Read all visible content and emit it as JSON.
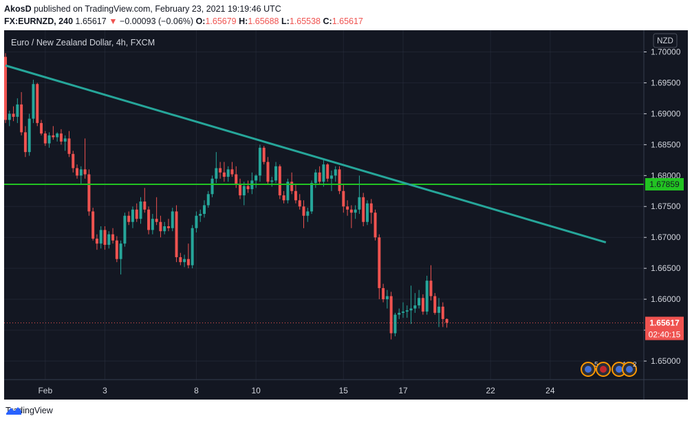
{
  "header": {
    "author": "AkosD",
    "published": "published on TradingView.com, February 23, 2021 19:19:46 UTC",
    "symbol": "FX:EURNZD, 240",
    "last": "1.65617",
    "arrow": "▼",
    "change": "−0.00093 (−0.06%)",
    "o_label": "O:",
    "o_value": "1.65679",
    "h_label": "H:",
    "h_value": "1.65688",
    "l_label": "L:",
    "l_value": "1.65538",
    "c_label": "C:",
    "c_value": "1.65617"
  },
  "legend": {
    "title": "Euro / New Zealand Dollar, 4h, FXCM"
  },
  "currency_badge": "NZD",
  "price_label": "1.65617",
  "countdown": "02:40:15",
  "level_label": "1.67859",
  "events": [
    "5",
    "10",
    "2"
  ],
  "footer": {
    "brand": "TradingView"
  },
  "colors": {
    "background": "#131722",
    "up": "#26a69a",
    "down": "#ef5350",
    "horizontal_line": "#22c322",
    "trendline": "#26a69a",
    "grid": "#363c4e",
    "axis_text": "#d1d4dc"
  },
  "chart_data": {
    "type": "candlestick",
    "title": "Euro / New Zealand Dollar, 4h, FXCM",
    "ylim": [
      1.647,
      1.7035
    ],
    "y_ticks": [
      1.65,
      1.655,
      1.66,
      1.665,
      1.67,
      1.675,
      1.68,
      1.685,
      1.69,
      1.695,
      1.7
    ],
    "y_tick_labels": [
      "1.65000",
      "1.65500",
      "1.66000",
      "1.66500",
      "1.67000",
      "1.67500",
      "1.68000",
      "1.68500",
      "1.69000",
      "1.69500",
      "1.70000"
    ],
    "x_tick_labels": [
      {
        "label": "Feb",
        "bar": 10
      },
      {
        "label": "3",
        "bar": 25
      },
      {
        "label": "8",
        "bar": 48
      },
      {
        "label": "10",
        "bar": 63
      },
      {
        "label": "15",
        "bar": 85
      },
      {
        "label": "17",
        "bar": 100
      },
      {
        "label": "22",
        "bar": 122
      },
      {
        "label": "24",
        "bar": 137
      }
    ],
    "candles": [
      [
        1.6992,
        1.6998,
        1.6885,
        1.689
      ],
      [
        1.689,
        1.6905,
        1.688,
        1.69
      ],
      [
        1.69,
        1.6912,
        1.6888,
        1.6895
      ],
      [
        1.6895,
        1.6925,
        1.6885,
        1.6915
      ],
      [
        1.6915,
        1.6935,
        1.6865,
        1.687
      ],
      [
        1.687,
        1.688,
        1.683,
        1.6838
      ],
      [
        1.6838,
        1.69,
        1.6832,
        1.6892
      ],
      [
        1.6892,
        1.6955,
        1.6885,
        1.6948
      ],
      [
        1.6948,
        1.695,
        1.688,
        1.6885
      ],
      [
        1.6885,
        1.689,
        1.6865,
        1.6868
      ],
      [
        1.6868,
        1.6872,
        1.6848,
        1.6852
      ],
      [
        1.6852,
        1.687,
        1.6845,
        1.6865
      ],
      [
        1.6865,
        1.688,
        1.6858,
        1.6862
      ],
      [
        1.6862,
        1.687,
        1.6855,
        1.6868
      ],
      [
        1.6868,
        1.6875,
        1.685,
        1.6855
      ],
      [
        1.6855,
        1.6865,
        1.684,
        1.686
      ],
      [
        1.686,
        1.6872,
        1.683,
        1.6835
      ],
      [
        1.6835,
        1.684,
        1.6805,
        1.6812
      ],
      [
        1.6812,
        1.6818,
        1.6795,
        1.68
      ],
      [
        1.68,
        1.6815,
        1.6785,
        1.681
      ],
      [
        1.681,
        1.686,
        1.6795,
        1.6802
      ],
      [
        1.6802,
        1.681,
        1.6735,
        1.6742
      ],
      [
        1.6742,
        1.6748,
        1.6695,
        1.6698
      ],
      [
        1.6698,
        1.6705,
        1.668,
        1.669
      ],
      [
        1.669,
        1.6718,
        1.6682,
        1.6712
      ],
      [
        1.6712,
        1.6718,
        1.668,
        1.6688
      ],
      [
        1.6688,
        1.671,
        1.6682,
        1.6705
      ],
      [
        1.6705,
        1.6715,
        1.669,
        1.6695
      ],
      [
        1.6695,
        1.6702,
        1.666,
        1.6665
      ],
      [
        1.6665,
        1.6695,
        1.664,
        1.669
      ],
      [
        1.669,
        1.674,
        1.6685,
        1.6735
      ],
      [
        1.6735,
        1.6742,
        1.672,
        1.6725
      ],
      [
        1.6725,
        1.675,
        1.6715,
        1.6745
      ],
      [
        1.6745,
        1.6755,
        1.6725,
        1.673
      ],
      [
        1.673,
        1.6765,
        1.6722,
        1.6758
      ],
      [
        1.6758,
        1.678,
        1.674,
        1.6745
      ],
      [
        1.6745,
        1.675,
        1.6705,
        1.6712
      ],
      [
        1.6712,
        1.6738,
        1.6705,
        1.673
      ],
      [
        1.673,
        1.6765,
        1.672,
        1.6725
      ],
      [
        1.6725,
        1.6735,
        1.67,
        1.671
      ],
      [
        1.671,
        1.6725,
        1.6705,
        1.6718
      ],
      [
        1.6718,
        1.673,
        1.671,
        1.6715
      ],
      [
        1.6715,
        1.6748,
        1.671,
        1.6742
      ],
      [
        1.6742,
        1.6752,
        1.666,
        1.6668
      ],
      [
        1.6668,
        1.6675,
        1.6655,
        1.666
      ],
      [
        1.666,
        1.6672,
        1.6652,
        1.6665
      ],
      [
        1.6665,
        1.669,
        1.665,
        1.6655
      ],
      [
        1.6655,
        1.672,
        1.665,
        1.6715
      ],
      [
        1.6715,
        1.6742,
        1.6708,
        1.6735
      ],
      [
        1.6735,
        1.6745,
        1.6725,
        1.6738
      ],
      [
        1.6738,
        1.676,
        1.6732,
        1.6752
      ],
      [
        1.6752,
        1.6775,
        1.6748,
        1.677
      ],
      [
        1.677,
        1.68,
        1.6765,
        1.6795
      ],
      [
        1.6795,
        1.6838,
        1.6788,
        1.6812
      ],
      [
        1.6812,
        1.6822,
        1.6795,
        1.6805
      ],
      [
        1.6805,
        1.6822,
        1.679,
        1.6798
      ],
      [
        1.6798,
        1.6815,
        1.679,
        1.681
      ],
      [
        1.681,
        1.6822,
        1.6798,
        1.6802
      ],
      [
        1.6802,
        1.6815,
        1.678,
        1.6785
      ],
      [
        1.6785,
        1.6795,
        1.6762,
        1.6768
      ],
      [
        1.6768,
        1.679,
        1.6752,
        1.6783
      ],
      [
        1.6783,
        1.6792,
        1.6772,
        1.6778
      ],
      [
        1.6778,
        1.6805,
        1.677,
        1.6792
      ],
      [
        1.6792,
        1.6802,
        1.678,
        1.68
      ],
      [
        1.68,
        1.685,
        1.679,
        1.6845
      ],
      [
        1.6845,
        1.6848,
        1.6818,
        1.6822
      ],
      [
        1.6822,
        1.683,
        1.6785,
        1.679
      ],
      [
        1.679,
        1.6798,
        1.6782,
        1.6792
      ],
      [
        1.6792,
        1.6822,
        1.6788,
        1.6815
      ],
      [
        1.6815,
        1.6818,
        1.6762,
        1.6768
      ],
      [
        1.6768,
        1.6775,
        1.6755,
        1.676
      ],
      [
        1.676,
        1.6795,
        1.6755,
        1.679
      ],
      [
        1.679,
        1.6805,
        1.677,
        1.6775
      ],
      [
        1.6775,
        1.6785,
        1.6755,
        1.676
      ],
      [
        1.676,
        1.677,
        1.6745,
        1.675
      ],
      [
        1.675,
        1.676,
        1.6715,
        1.6735
      ],
      [
        1.6735,
        1.6748,
        1.6725,
        1.6742
      ],
      [
        1.6742,
        1.6792,
        1.6738,
        1.6788
      ],
      [
        1.6788,
        1.681,
        1.678,
        1.6805
      ],
      [
        1.6805,
        1.6815,
        1.6785,
        1.679
      ],
      [
        1.679,
        1.6825,
        1.6782,
        1.6818
      ],
      [
        1.6818,
        1.682,
        1.679,
        1.6795
      ],
      [
        1.6795,
        1.6808,
        1.6775,
        1.68
      ],
      [
        1.68,
        1.6815,
        1.679,
        1.681
      ],
      [
        1.681,
        1.6815,
        1.677,
        1.6775
      ],
      [
        1.6775,
        1.6785,
        1.674,
        1.675
      ],
      [
        1.675,
        1.676,
        1.6735,
        1.6745
      ],
      [
        1.6745,
        1.6752,
        1.6715,
        1.674
      ],
      [
        1.674,
        1.6752,
        1.673,
        1.6745
      ],
      [
        1.6745,
        1.68,
        1.6738,
        1.6765
      ],
      [
        1.6765,
        1.6772,
        1.6718,
        1.6725
      ],
      [
        1.6725,
        1.676,
        1.672,
        1.6755
      ],
      [
        1.6755,
        1.6762,
        1.6722,
        1.674
      ],
      [
        1.674,
        1.6745,
        1.6695,
        1.67
      ],
      [
        1.67,
        1.6705,
        1.66,
        1.6618
      ],
      [
        1.6618,
        1.6625,
        1.6595,
        1.66
      ],
      [
        1.66,
        1.6615,
        1.6585,
        1.6605
      ],
      [
        1.6605,
        1.6612,
        1.6535,
        1.6545
      ],
      [
        1.6545,
        1.6578,
        1.654,
        1.6575
      ],
      [
        1.6575,
        1.6585,
        1.6568,
        1.6578
      ],
      [
        1.6578,
        1.6595,
        1.657,
        1.658
      ],
      [
        1.658,
        1.659,
        1.657,
        1.6582
      ],
      [
        1.6582,
        1.6622,
        1.656,
        1.6585
      ],
      [
        1.6585,
        1.661,
        1.6578,
        1.659
      ],
      [
        1.659,
        1.6615,
        1.6585,
        1.6602
      ],
      [
        1.6602,
        1.6608,
        1.6575,
        1.658
      ],
      [
        1.658,
        1.6638,
        1.6575,
        1.663
      ],
      [
        1.663,
        1.6655,
        1.6598,
        1.6605
      ],
      [
        1.6605,
        1.661,
        1.6575,
        1.6578
      ],
      [
        1.6578,
        1.6602,
        1.6555,
        1.6588
      ],
      [
        1.6588,
        1.6595,
        1.6555,
        1.6568
      ],
      [
        1.6568,
        1.6569,
        1.6554,
        1.6562
      ]
    ],
    "trendline": {
      "from": {
        "bar": 0,
        "price": 1.6978
      },
      "to": {
        "bar": 151,
        "price": 1.6692
      },
      "color": "#26a69a"
    },
    "horizontal_level": {
      "price": 1.67859,
      "color": "#22c322"
    },
    "current_price": 1.65617
  }
}
